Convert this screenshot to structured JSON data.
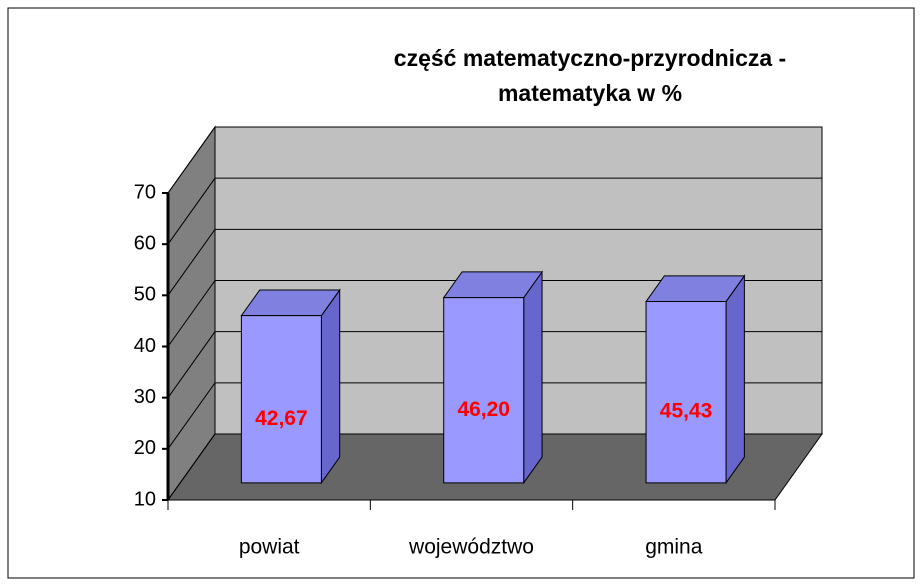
{
  "chart_data": {
    "type": "bar3d",
    "title": [
      "część matematyczno-przyrodnicza -",
      "matematyka w %"
    ],
    "categories": [
      "powiat",
      "województwo",
      "gmina"
    ],
    "values": [
      42.67,
      46.2,
      45.43
    ],
    "value_labels": [
      "42,67",
      "46,20",
      "45,43"
    ],
    "color": "#9999ff",
    "label_color": "#ff0000",
    "ylim": [
      10,
      70
    ],
    "yticks": [
      10,
      20,
      30,
      40,
      50,
      60,
      70
    ],
    "grid": true
  }
}
